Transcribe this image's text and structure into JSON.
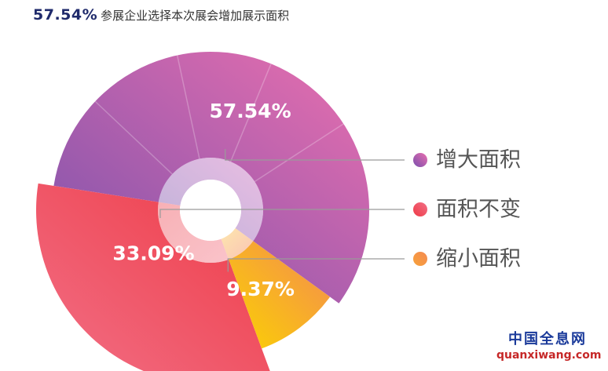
{
  "headline": {
    "highlight": "57.54%",
    "text": "参展企业选择本次展会增加展示面积"
  },
  "chart_data": {
    "type": "pie",
    "subtype": "nested-donut",
    "title": "",
    "categories": [
      "增大面积",
      "面积不变",
      "缩小面积"
    ],
    "values": [
      57.54,
      33.09,
      9.37
    ],
    "labels": [
      "57.54%",
      "33.09%",
      "9.37%"
    ],
    "colors": [
      [
        "#7a52ac",
        "#ea6faf"
      ],
      [
        "#ee3b46",
        "#f27087"
      ],
      [
        "#fbd300",
        "#f48a52"
      ]
    ],
    "legend": {
      "position": "right",
      "markers": [
        "#7a4fae",
        "#ee3a46",
        "#f7a23a"
      ]
    }
  },
  "watermark": {
    "cn": "中国全息网",
    "en": "quanxiwang.com"
  }
}
